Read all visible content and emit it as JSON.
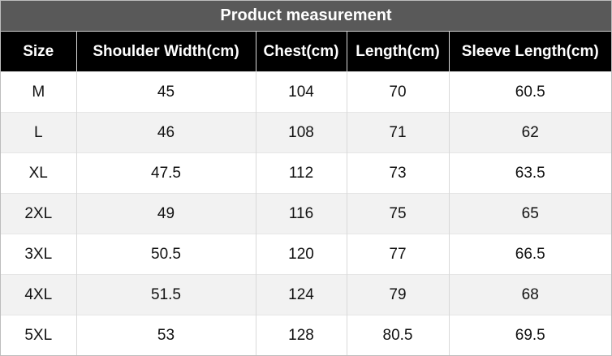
{
  "header": {
    "title": "Product measurement"
  },
  "table": {
    "columns": [
      "Size",
      "Shoulder Width(cm)",
      "Chest(cm)",
      "Length(cm)",
      "Sleeve Length(cm)"
    ],
    "rows": [
      [
        "M",
        45,
        104,
        70,
        60.5
      ],
      [
        "L",
        46,
        108,
        71,
        62
      ],
      [
        "XL",
        47.5,
        112,
        73,
        63.5
      ],
      [
        "2XL",
        49,
        116,
        75,
        65
      ],
      [
        "3XL",
        50.5,
        120,
        77,
        66.5
      ],
      [
        "4XL",
        51.5,
        124,
        79,
        68
      ],
      [
        "5XL",
        53,
        128,
        80.5,
        69.5
      ]
    ]
  }
}
